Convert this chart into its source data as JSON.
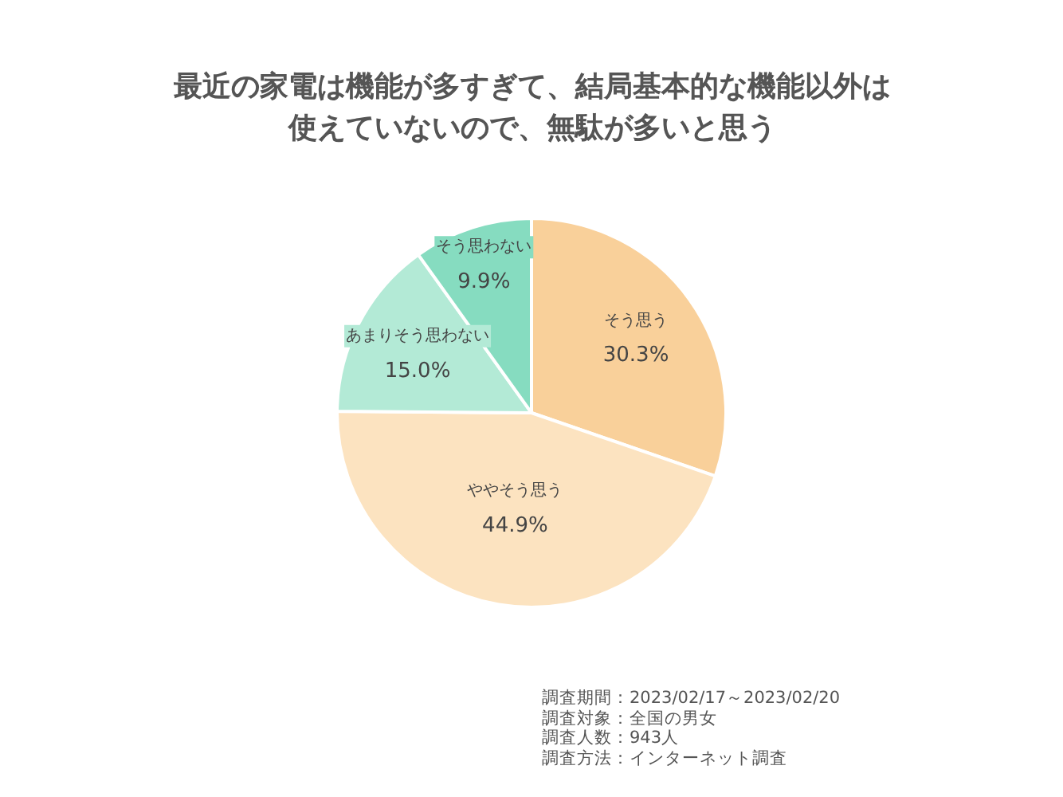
{
  "chart_data": {
    "type": "pie",
    "title": "最近の家電は機能が多すぎて、結局基本的な機能以外は使えていないので、無駄が多いと思う",
    "categories": [
      "そう思う",
      "ややそう思う",
      "あまりそう思わない",
      "そう思わない"
    ],
    "values": [
      30.3,
      44.9,
      15.0,
      9.9
    ],
    "colors": [
      "#f9d09a",
      "#fce3c0",
      "#b3ead6",
      "#86dcc0"
    ],
    "value_labels": [
      "30.3%",
      "44.9%",
      "15.0%",
      "9.9%"
    ],
    "legend": false,
    "annotations": [
      "調査期間：2023/02/17～2023/02/20",
      "調査対象：全国の男女",
      "調査人数：943人",
      "調査方法：インターネット調査"
    ]
  }
}
